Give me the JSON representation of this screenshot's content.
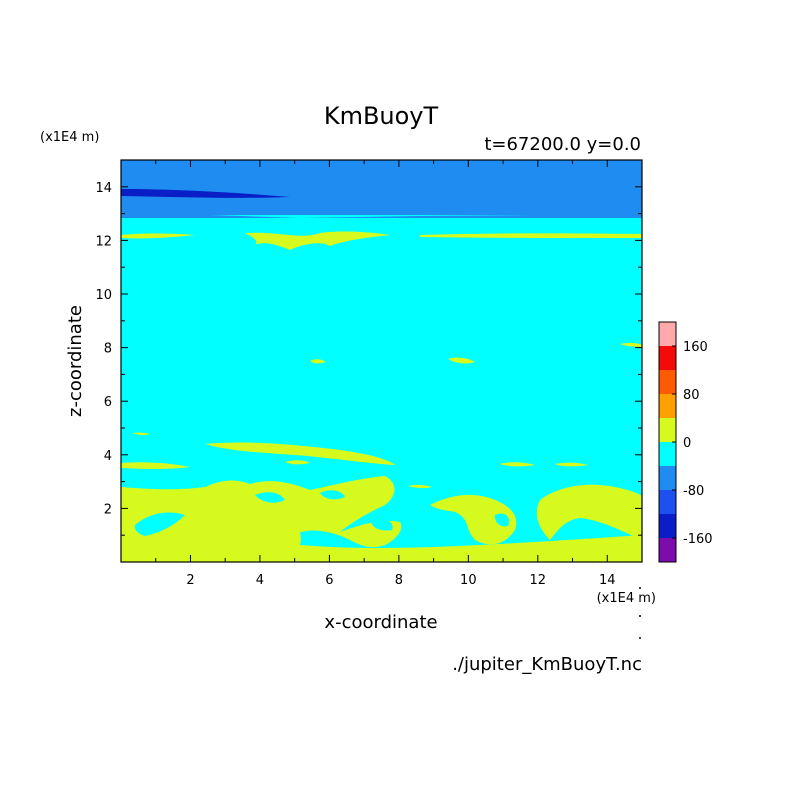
{
  "chart_data": {
    "type": "heatmap",
    "title": "KmBuoyT",
    "subtitle": "t=67200.0 y=0.0",
    "xlabel": "x-coordinate",
    "ylabel": "z-coordinate",
    "x_unit": "(x1E4 m)",
    "y_unit": "(x1E4 m)",
    "xlim": [
      0,
      15
    ],
    "ylim": [
      0,
      15
    ],
    "x_ticks": [
      2,
      4,
      6,
      8,
      10,
      12,
      14
    ],
    "y_ticks": [
      2,
      4,
      6,
      8,
      10,
      12,
      14
    ],
    "x_tick_labels": [
      "2",
      "4",
      "6",
      "8",
      "10",
      "12",
      "14"
    ],
    "y_tick_labels": [
      "2",
      "4",
      "6",
      "8",
      "10",
      "12",
      "14"
    ],
    "colorbar": {
      "levels": [
        -200,
        -160,
        -120,
        -80,
        -40,
        0,
        40,
        80,
        120,
        160,
        200
      ],
      "colors": [
        "#7a0dab",
        "#0a1ec8",
        "#1e50f0",
        "#1e8cf0",
        "#00ffff",
        "#d7fa1e",
        "#ffa000",
        "#ff5a00",
        "#f50a0a",
        "#ffaaaa"
      ],
      "tick_values": [
        160,
        80,
        0,
        -80,
        -160
      ],
      "tick_labels": [
        "160",
        "80",
        "0",
        "-80",
        "-160"
      ]
    },
    "background_level_color": "#00ffff",
    "regions": [
      {
        "name": "upper negative layer",
        "color": "#1e8cf0",
        "z_range": [
          12.9,
          15
        ]
      },
      {
        "name": "strong negative streak",
        "color": "#0a1ec8",
        "x_range": [
          0,
          4.8
        ],
        "z_range": [
          13.6,
          13.9
        ]
      },
      {
        "name": "near-surface positive layer",
        "color": "#d7fa1e",
        "x_range": [
          0,
          15
        ],
        "z_range": [
          0,
          3
        ]
      }
    ],
    "file_label": "./jupiter_KmBuoyT.nc"
  }
}
